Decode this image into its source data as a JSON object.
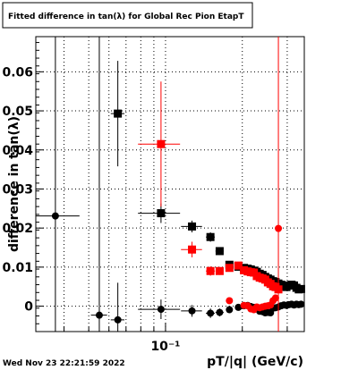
{
  "chart_data": {
    "type": "scatter",
    "title": "Fitted difference in tan(λ) for Global Rec Pion EtapT",
    "xlabel": "pT/|q| (GeV/c)",
    "ylabel": "difference in tan(λ)",
    "xscale": "log",
    "xlim": [
      0.031,
      0.35
    ],
    "ylim": [
      -0.0065,
      0.069
    ],
    "grid": true,
    "y_ticks": [
      "0",
      "0.01",
      "0.02",
      "0.03",
      "0.04",
      "0.05",
      "0.06"
    ],
    "y_tick_values": [
      0,
      0.01,
      0.02,
      0.03,
      0.04,
      0.05,
      0.06
    ],
    "x_tick_labels": [
      {
        "value": 0.1,
        "label": "10⁻¹"
      }
    ],
    "series": [
      {
        "color": "#000000",
        "marker": "circle",
        "points": [
          {
            "x": 0.037,
            "y": 0.0231,
            "xerr": 0.009,
            "yerr": 0.1
          },
          {
            "x": 0.055,
            "y": -0.0023,
            "xerr": 0.004,
            "yerr": 0.1
          },
          {
            "x": 0.065,
            "y": -0.0035,
            "xerr": 0.004,
            "yerr": 0.0095
          },
          {
            "x": 0.096,
            "y": -0.0008,
            "xerr": 0.018,
            "yerr": 0.0025
          },
          {
            "x": 0.127,
            "y": -0.0012,
            "xerr": 0.012,
            "yerr": 0.0015
          },
          {
            "x": 0.15,
            "y": -0.0018,
            "xerr": 0.006,
            "yerr": 0.0012
          },
          {
            "x": 0.163,
            "y": -0.0016,
            "xerr": 0.006,
            "yerr": 0.001
          },
          {
            "x": 0.178,
            "y": -0.0009,
            "xerr": 0.005,
            "yerr": 0.0008
          },
          {
            "x": 0.193,
            "y": -0.0003,
            "xerr": 0.005,
            "yerr": 0.0008
          },
          {
            "x": 0.203,
            "y": 0.0001,
            "xerr": 0.003,
            "yerr": 0.0006
          },
          {
            "x": 0.21,
            "y": 0.0002,
            "xerr": 0.003,
            "yerr": 0.0006
          },
          {
            "x": 0.216,
            "y": -0.0001,
            "xerr": 0.003,
            "yerr": 0.0006
          },
          {
            "x": 0.222,
            "y": -0.0003,
            "xerr": 0.003,
            "yerr": 0.0006
          },
          {
            "x": 0.228,
            "y": -0.0006,
            "xerr": 0.003,
            "yerr": 0.0006
          },
          {
            "x": 0.234,
            "y": -0.0013,
            "xerr": 0.003,
            "yerr": 0.0006
          },
          {
            "x": 0.24,
            "y": -0.0014,
            "xerr": 0.003,
            "yerr": 0.0006
          },
          {
            "x": 0.246,
            "y": -0.0017,
            "xerr": 0.003,
            "yerr": 0.0006
          },
          {
            "x": 0.252,
            "y": -0.0016,
            "xerr": 0.003,
            "yerr": 0.0006
          },
          {
            "x": 0.258,
            "y": -0.0017,
            "xerr": 0.003,
            "yerr": 0.0006
          },
          {
            "x": 0.264,
            "y": -0.0005,
            "xerr": 0.003,
            "yerr": 0.0006
          },
          {
            "x": 0.27,
            "y": -0.0004,
            "xerr": 0.003,
            "yerr": 0.0006
          },
          {
            "x": 0.277,
            "y": -0.0002,
            "xerr": 0.003,
            "yerr": 0.0006
          },
          {
            "x": 0.284,
            "y": 0.0001,
            "xerr": 0.003,
            "yerr": 0.0006
          },
          {
            "x": 0.291,
            "y": 0.0003,
            "xerr": 0.003,
            "yerr": 0.0006
          },
          {
            "x": 0.298,
            "y": 0.0002,
            "xerr": 0.003,
            "yerr": 0.0006
          },
          {
            "x": 0.305,
            "y": 0.0004,
            "xerr": 0.003,
            "yerr": 0.0006
          },
          {
            "x": 0.312,
            "y": 0.0005,
            "xerr": 0.003,
            "yerr": 0.0006
          },
          {
            "x": 0.319,
            "y": 0.0003,
            "xerr": 0.003,
            "yerr": 0.0006
          },
          {
            "x": 0.326,
            "y": 0.0005,
            "xerr": 0.003,
            "yerr": 0.0006
          },
          {
            "x": 0.333,
            "y": 0.0004,
            "xerr": 0.003,
            "yerr": 0.0006
          },
          {
            "x": 0.34,
            "y": 0.0005,
            "xerr": 0.003,
            "yerr": 0.0006
          }
        ]
      },
      {
        "color": "#000000",
        "marker": "square",
        "points": [
          {
            "x": 0.065,
            "y": 0.0493,
            "xerr": 0.004,
            "yerr": 0.0135
          },
          {
            "x": 0.096,
            "y": 0.0238,
            "xerr": 0.018,
            "yerr": 0.0025
          },
          {
            "x": 0.127,
            "y": 0.0204,
            "xerr": 0.012,
            "yerr": 0.0015
          },
          {
            "x": 0.15,
            "y": 0.0177,
            "xerr": 0.006,
            "yerr": 0.0012
          },
          {
            "x": 0.163,
            "y": 0.0141,
            "xerr": 0.006,
            "yerr": 0.001
          },
          {
            "x": 0.178,
            "y": 0.0106,
            "xerr": 0.005,
            "yerr": 0.0008
          },
          {
            "x": 0.193,
            "y": 0.0101,
            "xerr": 0.005,
            "yerr": 0.0008
          },
          {
            "x": 0.203,
            "y": 0.0098,
            "xerr": 0.003,
            "yerr": 0.0006
          },
          {
            "x": 0.21,
            "y": 0.0096,
            "xerr": 0.003,
            "yerr": 0.0006
          },
          {
            "x": 0.216,
            "y": 0.0094,
            "xerr": 0.003,
            "yerr": 0.0006
          },
          {
            "x": 0.222,
            "y": 0.0091,
            "xerr": 0.003,
            "yerr": 0.0006
          },
          {
            "x": 0.228,
            "y": 0.0088,
            "xerr": 0.003,
            "yerr": 0.0006
          },
          {
            "x": 0.234,
            "y": 0.0083,
            "xerr": 0.003,
            "yerr": 0.0006
          },
          {
            "x": 0.24,
            "y": 0.008,
            "xerr": 0.003,
            "yerr": 0.0006
          },
          {
            "x": 0.246,
            "y": 0.0075,
            "xerr": 0.003,
            "yerr": 0.0006
          },
          {
            "x": 0.252,
            "y": 0.0071,
            "xerr": 0.003,
            "yerr": 0.0006
          },
          {
            "x": 0.258,
            "y": 0.0068,
            "xerr": 0.003,
            "yerr": 0.0006
          },
          {
            "x": 0.264,
            "y": 0.0064,
            "xerr": 0.003,
            "yerr": 0.0006
          },
          {
            "x": 0.27,
            "y": 0.0062,
            "xerr": 0.003,
            "yerr": 0.0006
          },
          {
            "x": 0.277,
            "y": 0.0058,
            "xerr": 0.003,
            "yerr": 0.0006
          },
          {
            "x": 0.284,
            "y": 0.0055,
            "xerr": 0.003,
            "yerr": 0.0006
          },
          {
            "x": 0.291,
            "y": 0.0052,
            "xerr": 0.003,
            "yerr": 0.0006
          },
          {
            "x": 0.298,
            "y": 0.0049,
            "xerr": 0.003,
            "yerr": 0.0006
          },
          {
            "x": 0.305,
            "y": 0.0053,
            "xerr": 0.003,
            "yerr": 0.0006
          },
          {
            "x": 0.312,
            "y": 0.0055,
            "xerr": 0.003,
            "yerr": 0.0006
          },
          {
            "x": 0.319,
            "y": 0.0053,
            "xerr": 0.003,
            "yerr": 0.0006
          },
          {
            "x": 0.326,
            "y": 0.0047,
            "xerr": 0.003,
            "yerr": 0.0006
          },
          {
            "x": 0.333,
            "y": 0.0043,
            "xerr": 0.003,
            "yerr": 0.0006
          },
          {
            "x": 0.34,
            "y": 0.0044,
            "xerr": 0.003,
            "yerr": 0.0006
          }
        ]
      },
      {
        "color": "#ff0000",
        "marker": "circle",
        "points": [
          {
            "x": 0.178,
            "y": 0.0014,
            "xerr": 0.005,
            "yerr": 0.0008
          },
          {
            "x": 0.203,
            "y": 0.0002,
            "xerr": 0.003,
            "yerr": 0.0006
          },
          {
            "x": 0.21,
            "y": 0.0001,
            "xerr": 0.003,
            "yerr": 0.0006
          },
          {
            "x": 0.216,
            "y": -0.0007,
            "xerr": 0.003,
            "yerr": 0.0006
          },
          {
            "x": 0.222,
            "y": -0.0009,
            "xerr": 0.003,
            "yerr": 0.0006
          },
          {
            "x": 0.228,
            "y": -0.0002,
            "xerr": 0.003,
            "yerr": 0.0006
          },
          {
            "x": 0.234,
            "y": -0.0004,
            "xerr": 0.003,
            "yerr": 0.0006
          },
          {
            "x": 0.24,
            "y": -0.0002,
            "xerr": 0.003,
            "yerr": 0.0006
          },
          {
            "x": 0.246,
            "y": 0.0,
            "xerr": 0.003,
            "yerr": 0.0006
          },
          {
            "x": 0.252,
            "y": 0.0001,
            "xerr": 0.003,
            "yerr": 0.0006
          },
          {
            "x": 0.258,
            "y": 0.0003,
            "xerr": 0.003,
            "yerr": 0.0006
          },
          {
            "x": 0.264,
            "y": 0.0014,
            "xerr": 0.003,
            "yerr": 0.0006
          },
          {
            "x": 0.27,
            "y": 0.0021,
            "xerr": 0.003,
            "yerr": 0.0006
          },
          {
            "x": 0.277,
            "y": 0.0199,
            "xerr": 0.003,
            "yerr": 0.1
          }
        ]
      },
      {
        "color": "#ff0000",
        "marker": "square",
        "points": [
          {
            "x": 0.096,
            "y": 0.0415,
            "xerr": 0.018,
            "yerr": 0.016
          },
          {
            "x": 0.127,
            "y": 0.0145,
            "xerr": 0.012,
            "yerr": 0.002
          },
          {
            "x": 0.15,
            "y": 0.009,
            "xerr": 0.006,
            "yerr": 0.0012
          },
          {
            "x": 0.163,
            "y": 0.009,
            "xerr": 0.006,
            "yerr": 0.001
          },
          {
            "x": 0.178,
            "y": 0.0098,
            "xerr": 0.005,
            "yerr": 0.0008
          },
          {
            "x": 0.193,
            "y": 0.0104,
            "xerr": 0.005,
            "yerr": 0.0008
          },
          {
            "x": 0.203,
            "y": 0.0092,
            "xerr": 0.003,
            "yerr": 0.0006
          },
          {
            "x": 0.21,
            "y": 0.0089,
            "xerr": 0.003,
            "yerr": 0.0006
          },
          {
            "x": 0.216,
            "y": 0.0087,
            "xerr": 0.003,
            "yerr": 0.0006
          },
          {
            "x": 0.222,
            "y": 0.0086,
            "xerr": 0.003,
            "yerr": 0.0006
          },
          {
            "x": 0.228,
            "y": 0.0077,
            "xerr": 0.003,
            "yerr": 0.0006
          },
          {
            "x": 0.234,
            "y": 0.0073,
            "xerr": 0.003,
            "yerr": 0.0006
          },
          {
            "x": 0.24,
            "y": 0.0071,
            "xerr": 0.003,
            "yerr": 0.0006
          },
          {
            "x": 0.246,
            "y": 0.0068,
            "xerr": 0.003,
            "yerr": 0.0006
          },
          {
            "x": 0.252,
            "y": 0.0061,
            "xerr": 0.003,
            "yerr": 0.0006
          },
          {
            "x": 0.258,
            "y": 0.0057,
            "xerr": 0.003,
            "yerr": 0.0006
          },
          {
            "x": 0.264,
            "y": 0.0051,
            "xerr": 0.003,
            "yerr": 0.0006
          },
          {
            "x": 0.27,
            "y": 0.0049,
            "xerr": 0.003,
            "yerr": 0.0006
          },
          {
            "x": 0.277,
            "y": 0.0043,
            "xerr": 0.003,
            "yerr": 0.0006
          }
        ]
      }
    ]
  },
  "footer": {
    "date": "Wed Nov 23 22:21:59 2022"
  }
}
